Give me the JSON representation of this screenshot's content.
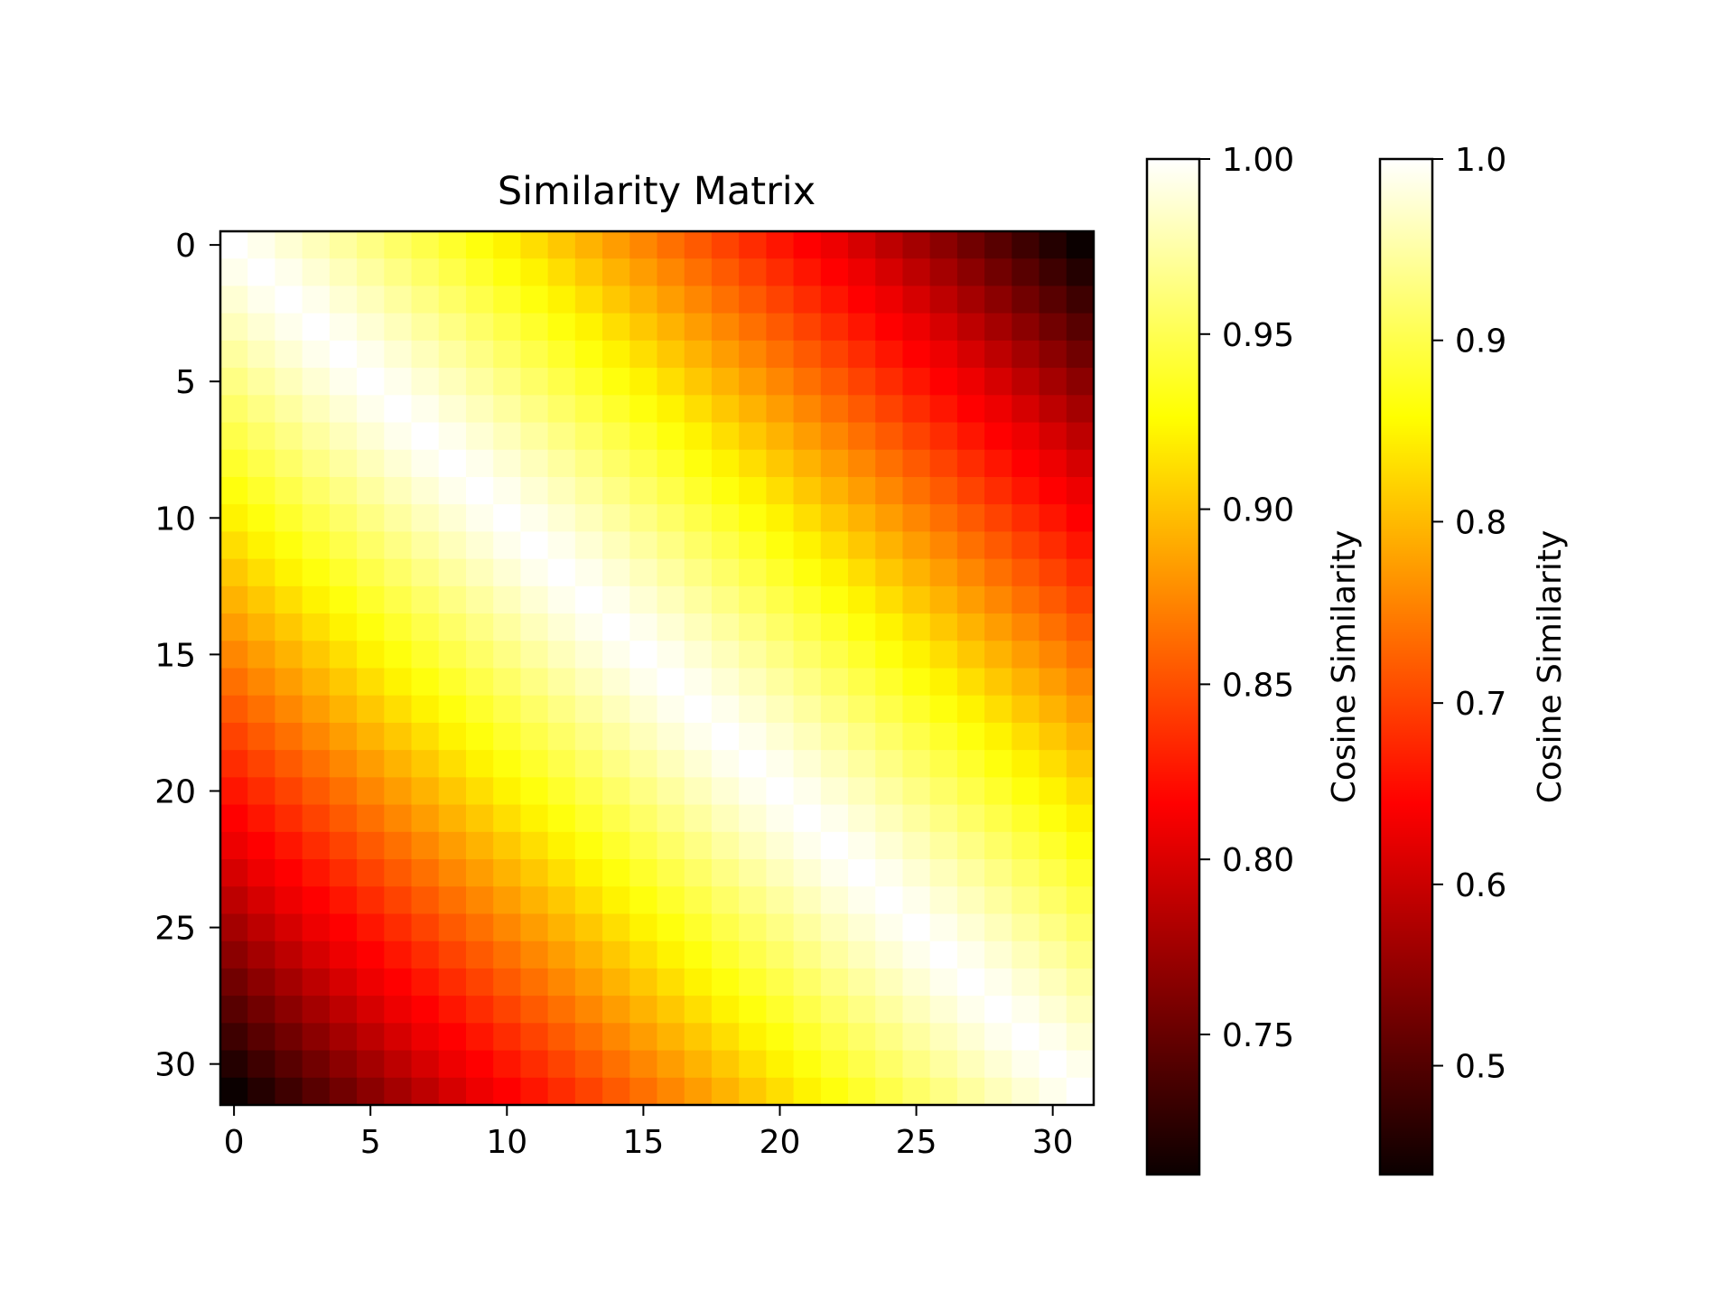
{
  "chart_data": {
    "type": "heatmap",
    "title": "Similarity Matrix",
    "xlabel": "",
    "ylabel": "",
    "rows": 32,
    "cols": 32,
    "x_ticks": [
      0,
      5,
      10,
      15,
      20,
      25,
      30
    ],
    "y_ticks": [
      0,
      5,
      10,
      15,
      20,
      25,
      30
    ],
    "colormap": "hot",
    "cell_model": "symmetric similarity decaying with |i - j|; 1.0 on the diagonal, about 0.45 at |i - j| = 31",
    "min_value": 0.45,
    "max_value": 1.0,
    "colorbars": [
      {
        "label": "Cosine Similarity",
        "range": [
          0.71,
          1.0
        ],
        "ticks": [
          "0.75",
          "0.80",
          "0.85",
          "0.90",
          "0.95",
          "1.00"
        ]
      },
      {
        "label": "Cosine Similarity",
        "range": [
          0.44,
          1.0
        ],
        "ticks": [
          "0.5",
          "0.6",
          "0.7",
          "0.8",
          "0.9",
          "1.0"
        ]
      }
    ],
    "grid": false,
    "legend": "none"
  }
}
